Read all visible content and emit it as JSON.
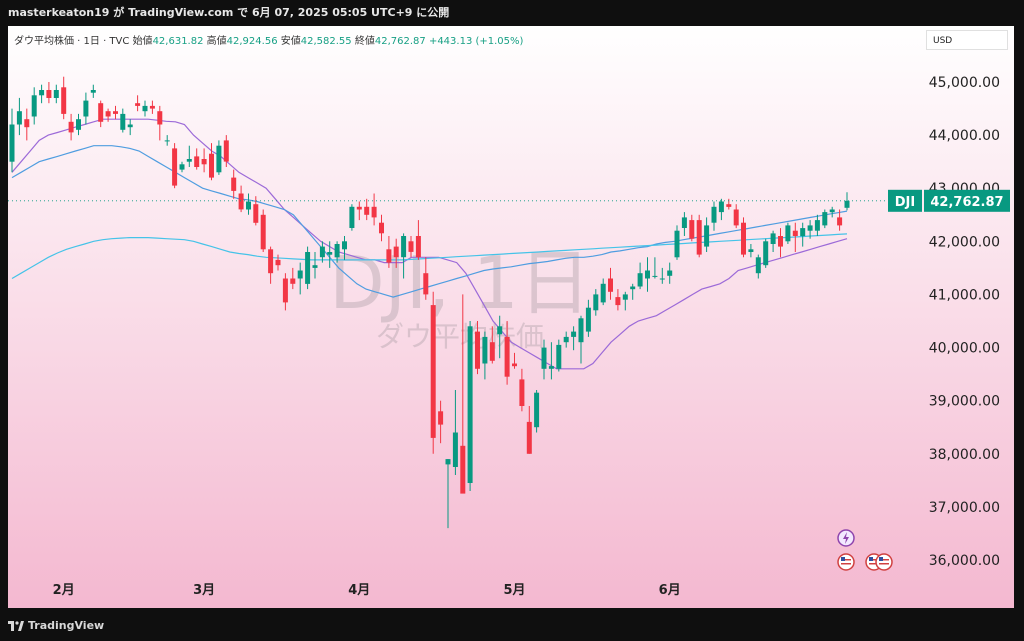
{
  "header": {
    "published_text": "masterkeaton19 が TradingView.com で 6月 07, 2025 05:05 UTC+9 に公開"
  },
  "legend": {
    "symbol_name": "ダウ平均株価 · 1日 · TVC",
    "open_label": "始値",
    "open_value": "42,631.82",
    "high_label": "高値",
    "high_value": "42,924.56",
    "low_label": "安値",
    "low_value": "42,582.55",
    "close_label": "終値",
    "close_value": "42,762.87",
    "change": "+443.13 (+1.05%)"
  },
  "currency": "USD",
  "watermark": {
    "main": "DJI, 1日",
    "sub": "ダウ平均株価"
  },
  "footer": {
    "brand": "TradingView"
  },
  "colors": {
    "up": "#089981",
    "down": "#f23645",
    "ma_short": "#9c6ad8",
    "ma_mid": "#4f9de0",
    "ma_long": "#45c3e8",
    "bg_top": "#ffffff",
    "bg_bottom": "#f4b8d0"
  },
  "chart_data": {
    "type": "candlestick",
    "ylim": [
      35600,
      45600
    ],
    "y_ticks": [
      36000,
      37000,
      38000,
      39000,
      40000,
      41000,
      42000,
      43000,
      44000,
      45000
    ],
    "y_tick_labels": [
      "36,000.00",
      "37,000.00",
      "38,000.00",
      "39,000.00",
      "40,000.00",
      "41,000.00",
      "42,000.00",
      "43,000.00",
      "44,000.00",
      "45,000.00"
    ],
    "x_labels": [
      {
        "label": "2月",
        "index": 7
      },
      {
        "label": "3月",
        "index": 26
      },
      {
        "label": "4月",
        "index": 47
      },
      {
        "label": "5月",
        "index": 68
      },
      {
        "label": "6月",
        "index": 89
      }
    ],
    "last_price_label": "DJI",
    "last_price_text": "42,762.87",
    "last_price": 42762.87,
    "candles": [
      [
        43500,
        44500,
        43300,
        44200
      ],
      [
        44200,
        44700,
        44000,
        44450
      ],
      [
        44300,
        44500,
        43900,
        44150
      ],
      [
        44350,
        44900,
        44200,
        44750
      ],
      [
        44750,
        44950,
        44600,
        44850
      ],
      [
        44850,
        45000,
        44600,
        44700
      ],
      [
        44700,
        44950,
        44600,
        44850
      ],
      [
        44900,
        45100,
        44300,
        44400
      ],
      [
        44250,
        44400,
        43900,
        44050
      ],
      [
        44100,
        44400,
        44000,
        44300
      ],
      [
        44350,
        44800,
        44200,
        44650
      ],
      [
        44800,
        44950,
        44700,
        44850
      ],
      [
        44600,
        44650,
        44150,
        44250
      ],
      [
        44450,
        44500,
        44250,
        44350
      ],
      [
        44450,
        44550,
        44300,
        44400
      ],
      [
        44100,
        44500,
        44050,
        44400
      ],
      [
        44150,
        44300,
        44000,
        44200
      ],
      [
        44600,
        44750,
        44450,
        44550
      ],
      [
        44450,
        44650,
        44350,
        44550
      ],
      [
        44550,
        44650,
        44400,
        44500
      ],
      [
        44450,
        44550,
        43900,
        44200
      ],
      [
        43900,
        44000,
        43800,
        43900
      ],
      [
        43750,
        43850,
        43000,
        43050
      ],
      [
        43350,
        43500,
        43300,
        43450
      ],
      [
        43500,
        43800,
        43400,
        43550
      ],
      [
        43600,
        43750,
        43350,
        43400
      ],
      [
        43550,
        43750,
        43300,
        43450
      ],
      [
        43650,
        43850,
        43150,
        43200
      ],
      [
        43300,
        43900,
        43250,
        43800
      ],
      [
        43900,
        44000,
        43400,
        43500
      ],
      [
        43200,
        43350,
        42800,
        42950
      ],
      [
        42900,
        43050,
        42550,
        42600
      ],
      [
        42600,
        42900,
        42500,
        42750
      ],
      [
        42700,
        42850,
        42300,
        42350
      ],
      [
        42500,
        42600,
        41800,
        41850
      ],
      [
        41850,
        41900,
        41200,
        41400
      ],
      [
        41650,
        41750,
        41450,
        41550
      ],
      [
        41300,
        41400,
        40700,
        40850
      ],
      [
        41300,
        41500,
        41100,
        41200
      ],
      [
        41300,
        41600,
        41000,
        41450
      ],
      [
        41200,
        41900,
        41100,
        41800
      ],
      [
        41500,
        41800,
        41300,
        41550
      ],
      [
        41700,
        42000,
        41600,
        41900
      ],
      [
        41750,
        42000,
        41500,
        41800
      ],
      [
        41700,
        42000,
        41600,
        41950
      ],
      [
        41850,
        42100,
        41650,
        42000
      ],
      [
        42250,
        42700,
        42200,
        42650
      ],
      [
        42650,
        42750,
        42400,
        42600
      ],
      [
        42650,
        42800,
        42400,
        42500
      ],
      [
        42650,
        42900,
        42300,
        42450
      ],
      [
        42350,
        42500,
        42000,
        42150
      ],
      [
        41850,
        42100,
        41500,
        41600
      ],
      [
        41900,
        42050,
        41500,
        41700
      ],
      [
        41700,
        42150,
        41300,
        42100
      ],
      [
        42000,
        42100,
        41700,
        41800
      ],
      [
        42100,
        42400,
        41650,
        41700
      ],
      [
        41400,
        41700,
        40900,
        41000
      ],
      [
        40800,
        41050,
        38000,
        38300
      ],
      [
        38800,
        39000,
        38200,
        38550
      ],
      [
        37800,
        37900,
        36600,
        37900
      ],
      [
        37750,
        39200,
        37600,
        38400
      ],
      [
        38150,
        41000,
        37300,
        37250
      ],
      [
        37450,
        40500,
        37300,
        40400
      ],
      [
        40300,
        40500,
        39500,
        39600
      ],
      [
        39700,
        40300,
        39400,
        40200
      ],
      [
        40100,
        40400,
        39700,
        39750
      ],
      [
        40250,
        40600,
        39800,
        40400
      ],
      [
        40200,
        40500,
        39300,
        39450
      ],
      [
        39700,
        39900,
        39600,
        39650
      ],
      [
        39400,
        39600,
        38800,
        38900
      ],
      [
        38600,
        38900,
        38000,
        38000
      ],
      [
        38500,
        39200,
        38400,
        39150
      ],
      [
        39600,
        40150,
        39400,
        40000
      ],
      [
        39600,
        40100,
        39400,
        39650
      ],
      [
        39600,
        40150,
        39550,
        40050
      ],
      [
        40100,
        40300,
        40000,
        40200
      ],
      [
        40200,
        40400,
        39950,
        40300
      ],
      [
        40100,
        40600,
        39700,
        40550
      ],
      [
        40300,
        40900,
        40200,
        40750
      ],
      [
        40700,
        41100,
        40600,
        41000
      ],
      [
        40850,
        41300,
        40800,
        41200
      ],
      [
        41300,
        41500,
        40900,
        41050
      ],
      [
        40950,
        41100,
        40700,
        40800
      ],
      [
        40900,
        41050,
        40700,
        41000
      ],
      [
        41100,
        41200,
        40900,
        41150
      ],
      [
        41150,
        41600,
        41100,
        41400
      ],
      [
        41300,
        41700,
        41050,
        41450
      ],
      [
        41350,
        41700,
        41300,
        41350
      ],
      [
        41300,
        41500,
        41200,
        41300
      ],
      [
        41350,
        41600,
        41200,
        41450
      ],
      [
        41700,
        42300,
        41650,
        42200
      ],
      [
        42250,
        42550,
        42100,
        42450
      ],
      [
        42400,
        42500,
        42000,
        42050
      ],
      [
        42400,
        42500,
        41700,
        41750
      ],
      [
        41900,
        42450,
        41800,
        42300
      ],
      [
        42350,
        42750,
        42200,
        42650
      ],
      [
        42550,
        42800,
        42400,
        42750
      ],
      [
        42700,
        42800,
        42600,
        42650
      ],
      [
        42600,
        42700,
        42250,
        42300
      ],
      [
        42350,
        42450,
        41700,
        41750
      ],
      [
        41800,
        41950,
        41700,
        41850
      ],
      [
        41400,
        41750,
        41300,
        41700
      ],
      [
        41550,
        42050,
        41500,
        42000
      ],
      [
        41950,
        42200,
        41800,
        42150
      ],
      [
        42100,
        42250,
        41700,
        41900
      ],
      [
        42000,
        42350,
        41950,
        42300
      ],
      [
        42200,
        42350,
        41800,
        42100
      ],
      [
        42100,
        42350,
        41900,
        42250
      ],
      [
        42200,
        42400,
        42050,
        42300
      ],
      [
        42200,
        42500,
        42100,
        42400
      ],
      [
        42300,
        42600,
        42250,
        42550
      ],
      [
        42550,
        42650,
        42450,
        42600
      ],
      [
        42450,
        42600,
        42200,
        42300
      ],
      [
        42632,
        42925,
        42583,
        42763
      ]
    ],
    "series": [
      {
        "name": "ma_short",
        "values": [
          43300,
          43500,
          43700,
          43900,
          44000,
          44050,
          44100,
          44150,
          44200,
          44250,
          44300,
          44300,
          44300,
          44300,
          44300,
          44300,
          44280,
          44260,
          44250,
          44200,
          44000,
          43850,
          43700,
          43600,
          43450,
          43300,
          43200,
          43100,
          43000,
          42800,
          42600,
          42450,
          42300,
          42150,
          42000,
          41900,
          41800,
          41750,
          41700,
          41650,
          41650,
          41600,
          41600,
          41600,
          41700,
          41700,
          41700,
          41700,
          41650,
          41600,
          41400,
          41100,
          40800,
          40500,
          40300,
          40100,
          40000,
          39900,
          39800,
          39700,
          39600,
          39600,
          39600,
          39600,
          39700,
          39900,
          40100,
          40250,
          40400,
          40500,
          40550,
          40600,
          40700,
          40800,
          40900,
          41000,
          41100,
          41150,
          41200,
          41300,
          41450,
          41500,
          41550,
          41600,
          41650,
          41700,
          41750,
          41800,
          41850,
          41900,
          41950,
          42000,
          42050
        ]
      },
      {
        "name": "ma_mid",
        "values": [
          43200,
          43300,
          43400,
          43500,
          43550,
          43600,
          43650,
          43700,
          43750,
          43800,
          43800,
          43800,
          43780,
          43750,
          43700,
          43600,
          43500,
          43400,
          43300,
          43200,
          43100,
          43000,
          42950,
          42900,
          42850,
          42800,
          42780,
          42750,
          42700,
          42650,
          42600,
          42500,
          42300,
          42100,
          41900,
          41700,
          41500,
          41350,
          41200,
          41100,
          41050,
          41000,
          40950,
          41000,
          41050,
          41100,
          41150,
          41200,
          41250,
          41300,
          41350,
          41400,
          41450,
          41480,
          41500,
          41520,
          41550,
          41580,
          41600,
          41620,
          41650,
          41680,
          41700,
          41700,
          41720,
          41750,
          41800,
          41820,
          41850,
          41880,
          41900,
          41950,
          41980,
          42000,
          42030,
          42060,
          42090,
          42120,
          42150,
          42180,
          42210,
          42240,
          42270,
          42300,
          42330,
          42360,
          42390,
          42420,
          42450,
          42480,
          42510,
          42540,
          42570
        ]
      },
      {
        "name": "ma_long",
        "values": [
          41300,
          41400,
          41500,
          41600,
          41700,
          41780,
          41850,
          41900,
          41950,
          42000,
          42030,
          42050,
          42060,
          42070,
          42070,
          42070,
          42060,
          42050,
          42040,
          42030,
          42000,
          41950,
          41900,
          41850,
          41800,
          41770,
          41750,
          41720,
          41700,
          41690,
          41680,
          41670,
          41660,
          41650,
          41650,
          41650,
          41650,
          41650,
          41650,
          41650,
          41650,
          41650,
          41650,
          41650,
          41660,
          41670,
          41680,
          41690,
          41700,
          41710,
          41720,
          41730,
          41740,
          41750,
          41760,
          41770,
          41780,
          41790,
          41800,
          41810,
          41820,
          41830,
          41840,
          41850,
          41860,
          41870,
          41880,
          41890,
          41900,
          41910,
          41920,
          41930,
          41940,
          41950,
          41960,
          41970,
          41980,
          41990,
          42000,
          42010,
          42020,
          42030,
          42040,
          42050,
          42060,
          42070,
          42080,
          42090,
          42100,
          42110,
          42120,
          42130,
          42140
        ]
      }
    ]
  }
}
